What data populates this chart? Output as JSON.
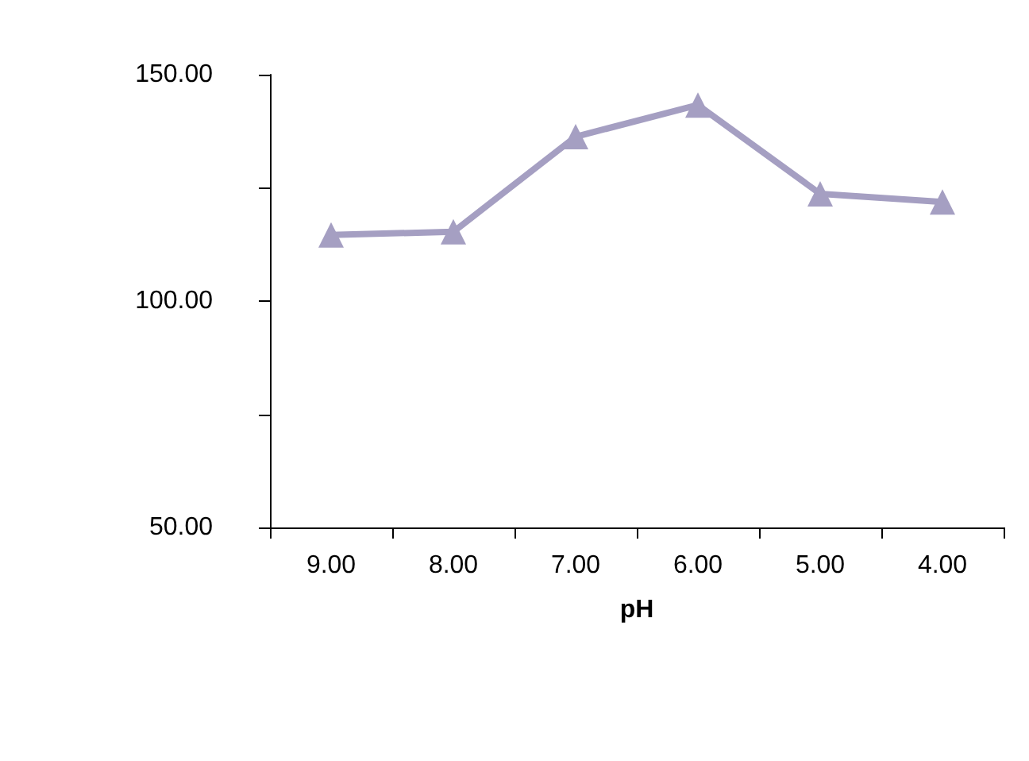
{
  "chart_data": {
    "type": "line",
    "xlabel": "pH",
    "categories": [
      "9.00",
      "8.00",
      "7.00",
      "6.00",
      "5.00",
      "4.00"
    ],
    "series": [
      {
        "color": "#a59fc2",
        "values": [
          114.6,
          115.3,
          136.3,
          143.3,
          123.7,
          121.9
        ]
      }
    ],
    "ylim": [
      50,
      150
    ],
    "yticks": [
      {
        "value": 50,
        "label": "50.00"
      },
      {
        "value": 75,
        "label": null
      },
      {
        "value": 100,
        "label": "100.00"
      },
      {
        "value": 125,
        "label": null
      },
      {
        "value": 150,
        "label": "150.00"
      }
    ],
    "grid": false,
    "marker": "triangle",
    "line_style": "solid"
  }
}
